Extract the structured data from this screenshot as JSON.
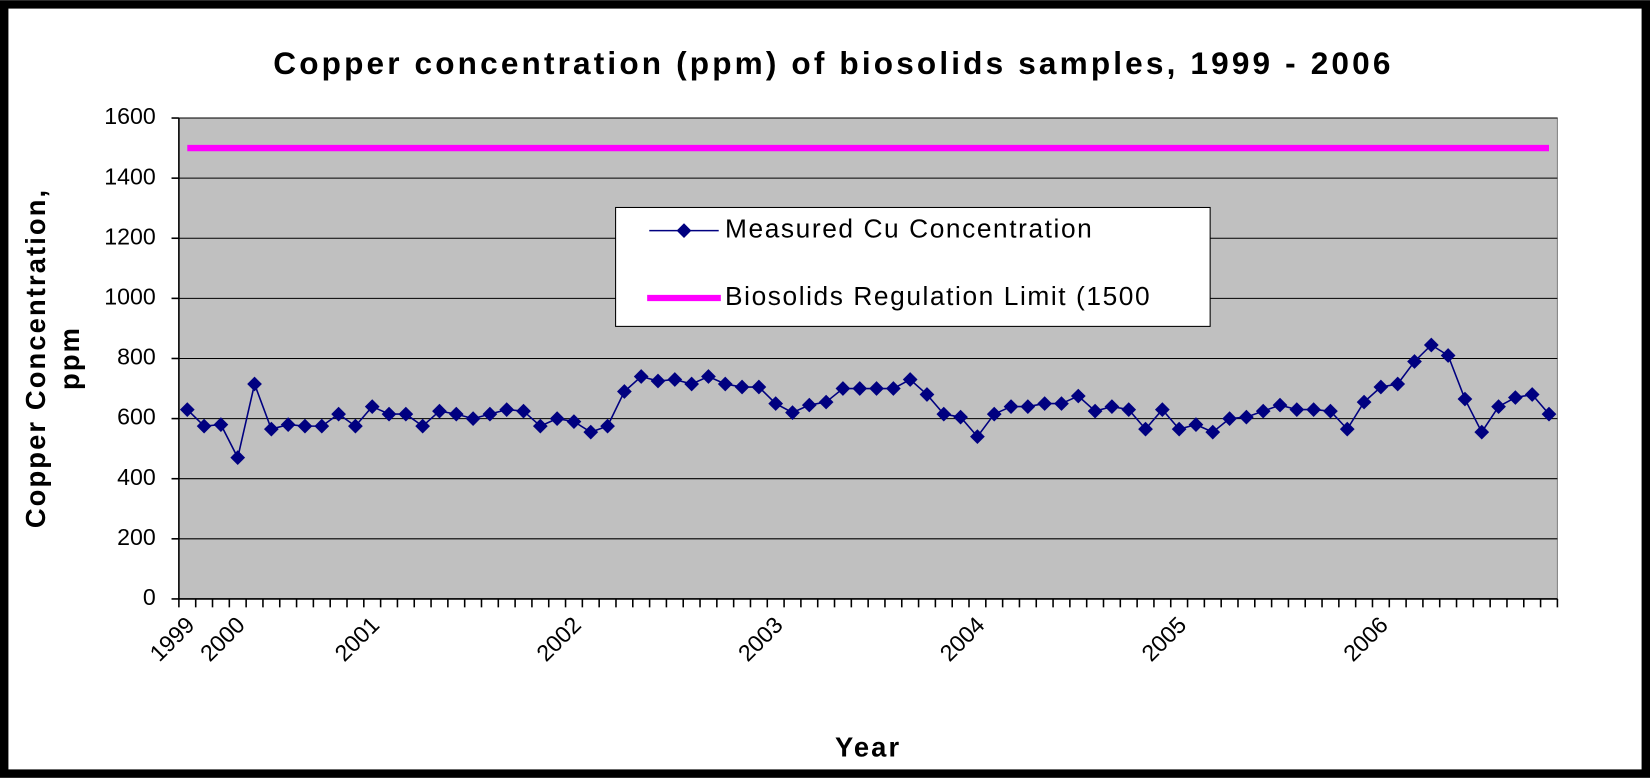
{
  "chart_data": {
    "type": "line",
    "title": "Copper concentration (ppm) of biosolids samples, 1999 - 2006",
    "x_label": "Year",
    "y_label": [
      "Copper Concentration,",
      "ppm"
    ],
    "categories": [
      "1999",
      null,
      null,
      "2000",
      null,
      null,
      null,
      null,
      null,
      null,
      null,
      "2001",
      null,
      null,
      null,
      null,
      null,
      null,
      null,
      null,
      null,
      null,
      null,
      "2002",
      null,
      null,
      null,
      null,
      null,
      null,
      null,
      null,
      null,
      null,
      null,
      "2003",
      null,
      null,
      null,
      null,
      null,
      null,
      null,
      null,
      null,
      null,
      null,
      "2004",
      null,
      null,
      null,
      null,
      null,
      null,
      null,
      null,
      null,
      null,
      null,
      "2005",
      null,
      null,
      null,
      null,
      null,
      null,
      null,
      null,
      null,
      null,
      null,
      "2006",
      null,
      null,
      null,
      null,
      null,
      null,
      null,
      null,
      null,
      null
    ],
    "series": [
      {
        "name": "Measured Cu Concentration",
        "color": "#000080",
        "marker": "diamond",
        "values": [
          630,
          575,
          580,
          470,
          715,
          565,
          580,
          575,
          575,
          615,
          575,
          640,
          615,
          615,
          575,
          625,
          615,
          600,
          615,
          630,
          625,
          575,
          600,
          590,
          555,
          575,
          690,
          740,
          725,
          730,
          715,
          740,
          715,
          705,
          705,
          650,
          620,
          645,
          655,
          700,
          700,
          700,
          700,
          730,
          680,
          615,
          605,
          540,
          615,
          640,
          640,
          650,
          650,
          675,
          625,
          640,
          630,
          565,
          630,
          565,
          580,
          555,
          600,
          605,
          625,
          645,
          630,
          630,
          625,
          565,
          655,
          705,
          715,
          790,
          845,
          810,
          665,
          555,
          640,
          670,
          680,
          615
        ]
      },
      {
        "name": "Biosolids Regulation Limit (1500",
        "color": "#ff00ff",
        "marker": "none",
        "values": [
          1500,
          1500,
          1500,
          1500,
          1500,
          1500,
          1500,
          1500,
          1500,
          1500,
          1500,
          1500,
          1500,
          1500,
          1500,
          1500,
          1500,
          1500,
          1500,
          1500,
          1500,
          1500,
          1500,
          1500,
          1500,
          1500,
          1500,
          1500,
          1500,
          1500,
          1500,
          1500,
          1500,
          1500,
          1500,
          1500,
          1500,
          1500,
          1500,
          1500,
          1500,
          1500,
          1500,
          1500,
          1500,
          1500,
          1500,
          1500,
          1500,
          1500,
          1500,
          1500,
          1500,
          1500,
          1500,
          1500,
          1500,
          1500,
          1500,
          1500,
          1500,
          1500,
          1500,
          1500,
          1500,
          1500,
          1500,
          1500,
          1500,
          1500,
          1500,
          1500,
          1500,
          1500,
          1500,
          1500,
          1500,
          1500,
          1500,
          1500,
          1500,
          1500
        ]
      }
    ],
    "ylim": [
      0,
      1600
    ],
    "yticks": [
      0,
      200,
      400,
      600,
      800,
      1000,
      1200,
      1400,
      1600
    ],
    "grid": true,
    "plot_background": "#c0c0c0",
    "legend": "top-center"
  }
}
